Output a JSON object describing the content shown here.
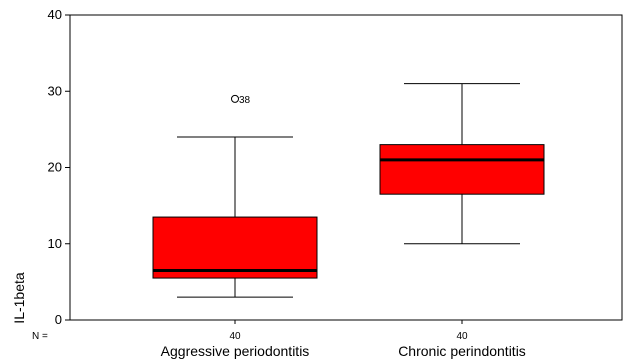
{
  "chart_data": {
    "type": "box",
    "ylabel": "IL-1beta",
    "ylim": [
      0,
      40
    ],
    "yticks": [
      0,
      10,
      20,
      30,
      40
    ],
    "n_prefix": "N =",
    "grid": false,
    "categories": [
      "Aggressive periodontitis",
      "Chronic perindontitis"
    ],
    "boxes": [
      {
        "category": "Aggressive periodontitis",
        "n": "40",
        "whisker_low": 3,
        "q1": 5.5,
        "median": 6.5,
        "q3": 13.5,
        "whisker_high": 24,
        "outliers": [
          {
            "value": 29,
            "label": "38"
          }
        ]
      },
      {
        "category": "Chronic perindontitis",
        "n": "40",
        "whisker_low": 10,
        "q1": 16.5,
        "median": 21,
        "q3": 23,
        "whisker_high": 31,
        "outliers": []
      }
    ],
    "box_color": "#ff0000",
    "line_color": "#000000"
  }
}
